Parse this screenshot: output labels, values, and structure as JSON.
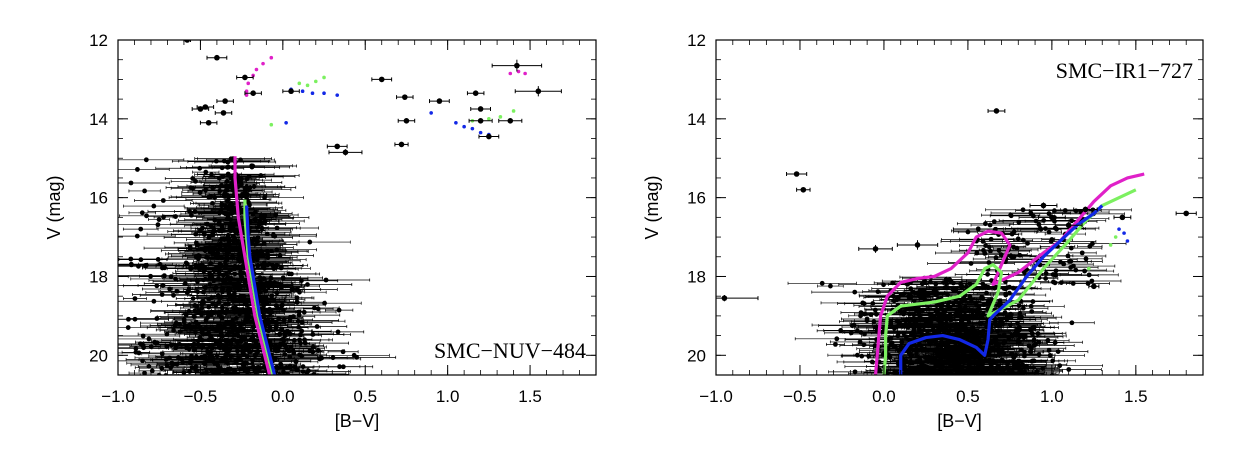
{
  "chart_data": [
    {
      "type": "scatter",
      "title": "SMC−NUV−484",
      "xlabel": "[B−V]",
      "ylabel": "V (mag)",
      "xlim": [
        -1.0,
        1.9
      ],
      "ylim": [
        20.5,
        12.0
      ],
      "y_inverted": true,
      "legend": "none",
      "title_position": "bottom-right",
      "xticks": [
        -1.0,
        -0.5,
        0.0,
        0.5,
        1.0,
        1.5
      ],
      "xtick_labels": [
        "−1.0",
        "−0.5",
        "0.0",
        "0.5",
        "1.0",
        "1.5"
      ],
      "yticks": [
        12,
        14,
        16,
        18,
        20
      ],
      "ytick_labels": [
        "12",
        "14",
        "16",
        "18",
        "20"
      ],
      "stars": [
        {
          "x": -0.58,
          "y": 12.0,
          "ex": 0.02,
          "ey": 0.02
        },
        {
          "x": -0.4,
          "y": 12.45,
          "ex": 0.06,
          "ey": 0.05
        },
        {
          "x": -0.23,
          "y": 12.95,
          "ex": 0.05,
          "ey": 0.05
        },
        {
          "x": -0.18,
          "y": 13.35,
          "ex": 0.05,
          "ey": 0.05
        },
        {
          "x": -0.35,
          "y": 13.55,
          "ex": 0.05,
          "ey": 0.05
        },
        {
          "x": -0.47,
          "y": 13.7,
          "ex": 0.05,
          "ey": 0.05
        },
        {
          "x": -0.5,
          "y": 13.75,
          "ex": 0.05,
          "ey": 0.05
        },
        {
          "x": -0.36,
          "y": 13.85,
          "ex": 0.05,
          "ey": 0.05
        },
        {
          "x": -0.45,
          "y": 14.1,
          "ex": 0.05,
          "ey": 0.05
        },
        {
          "x": 0.05,
          "y": 13.3,
          "ex": 0.05,
          "ey": 0.05
        },
        {
          "x": 0.6,
          "y": 13.0,
          "ex": 0.06,
          "ey": 0.05
        },
        {
          "x": 0.74,
          "y": 13.45,
          "ex": 0.05,
          "ey": 0.05
        },
        {
          "x": 0.95,
          "y": 13.55,
          "ex": 0.06,
          "ey": 0.05
        },
        {
          "x": 0.75,
          "y": 14.05,
          "ex": 0.05,
          "ey": 0.05
        },
        {
          "x": 0.72,
          "y": 14.65,
          "ex": 0.04,
          "ey": 0.05
        },
        {
          "x": 0.38,
          "y": 14.85,
          "ex": 0.1,
          "ey": 0.08
        },
        {
          "x": 0.33,
          "y": 14.7,
          "ex": 0.06,
          "ey": 0.06
        },
        {
          "x": 1.17,
          "y": 13.35,
          "ex": 0.05,
          "ey": 0.05
        },
        {
          "x": 1.2,
          "y": 13.75,
          "ex": 0.06,
          "ey": 0.06
        },
        {
          "x": 1.2,
          "y": 14.05,
          "ex": 0.07,
          "ey": 0.06
        },
        {
          "x": 1.38,
          "y": 14.05,
          "ex": 0.07,
          "ey": 0.06
        },
        {
          "x": 1.25,
          "y": 14.45,
          "ex": 0.06,
          "ey": 0.06
        },
        {
          "x": 1.42,
          "y": 12.65,
          "ex": 0.15,
          "ey": 0.15
        },
        {
          "x": 1.55,
          "y": 13.3,
          "ex": 0.14,
          "ey": 0.13
        }
      ],
      "isochrones": [
        {
          "name": "magenta",
          "color": "#e020c8",
          "points": [
            [
              -0.29,
              14.95
            ],
            [
              -0.29,
              15.5
            ],
            [
              -0.28,
              16.0
            ],
            [
              -0.27,
              16.5
            ],
            [
              -0.25,
              17.0
            ],
            [
              -0.23,
              17.5
            ],
            [
              -0.21,
              18.0
            ],
            [
              -0.19,
              18.5
            ],
            [
              -0.17,
              19.0
            ],
            [
              -0.14,
              19.5
            ],
            [
              -0.11,
              20.0
            ],
            [
              -0.08,
              20.5
            ]
          ]
        },
        {
          "name": "green",
          "color": "#7cf060",
          "points": [
            [
              -0.23,
              16.05
            ],
            [
              -0.23,
              16.5
            ],
            [
              -0.22,
              17.0
            ],
            [
              -0.21,
              17.5
            ],
            [
              -0.19,
              18.0
            ],
            [
              -0.17,
              18.5
            ],
            [
              -0.15,
              19.0
            ],
            [
              -0.12,
              19.5
            ],
            [
              -0.09,
              20.0
            ],
            [
              -0.06,
              20.5
            ]
          ]
        },
        {
          "name": "blue",
          "color": "#1228e6",
          "points": [
            [
              -0.22,
              16.2
            ],
            [
              -0.21,
              17.0
            ],
            [
              -0.2,
              17.5
            ],
            [
              -0.18,
              18.0
            ],
            [
              -0.16,
              18.5
            ],
            [
              -0.14,
              19.0
            ],
            [
              -0.11,
              19.5
            ],
            [
              -0.08,
              20.0
            ],
            [
              -0.05,
              20.5
            ]
          ]
        }
      ],
      "evolved_points": [
        {
          "color": "#e020c8",
          "points": [
            [
              -0.22,
              13.4
            ],
            [
              -0.22,
              13.3
            ],
            [
              -0.21,
              13.1
            ],
            [
              -0.18,
              12.9
            ],
            [
              -0.16,
              12.75
            ],
            [
              -0.12,
              12.6
            ],
            [
              -0.07,
              12.45
            ]
          ]
        },
        {
          "color": "#7cf060",
          "points": [
            [
              0.1,
              13.1
            ],
            [
              0.15,
              13.15
            ],
            [
              0.2,
              13.05
            ],
            [
              0.25,
              12.95
            ],
            [
              -0.07,
              14.15
            ],
            [
              1.15,
              14.05
            ],
            [
              1.25,
              14.0
            ],
            [
              1.32,
              13.95
            ],
            [
              1.4,
              13.8
            ]
          ]
        },
        {
          "color": "#1228e6",
          "points": [
            [
              0.05,
              13.25
            ],
            [
              0.12,
              13.3
            ],
            [
              0.18,
              13.35
            ],
            [
              0.25,
              13.35
            ],
            [
              0.33,
              13.4
            ],
            [
              0.02,
              14.1
            ],
            [
              0.9,
              13.85
            ],
            [
              1.05,
              14.1
            ],
            [
              1.1,
              14.2
            ],
            [
              1.15,
              14.25
            ],
            [
              1.2,
              14.35
            ],
            [
              1.25,
              14.4
            ]
          ]
        },
        {
          "color": "#e020c8",
          "points": [
            [
              1.38,
              12.85
            ],
            [
              1.43,
              12.8
            ],
            [
              1.47,
              12.85
            ]
          ]
        }
      ]
    },
    {
      "type": "scatter",
      "title": "SMC−IR1−727",
      "xlabel": "[B−V]",
      "ylabel": "V (mag)",
      "xlim": [
        -1.0,
        1.9
      ],
      "ylim": [
        20.5,
        12.0
      ],
      "y_inverted": true,
      "legend": "none",
      "title_position": "top-right",
      "xticks": [
        -1.0,
        -0.5,
        0.0,
        0.5,
        1.0,
        1.5
      ],
      "xtick_labels": [
        "−1.0",
        "−0.5",
        "0.0",
        "0.5",
        "1.0",
        "1.5"
      ],
      "yticks": [
        12,
        14,
        16,
        18,
        20
      ],
      "ytick_labels": [
        "12",
        "14",
        "16",
        "18",
        "20"
      ],
      "stars": [
        {
          "x": 0.67,
          "y": 13.8,
          "ex": 0.05,
          "ey": 0.05
        },
        {
          "x": -0.52,
          "y": 15.4,
          "ex": 0.06,
          "ey": 0.05
        },
        {
          "x": -0.48,
          "y": 15.8,
          "ex": 0.04,
          "ey": 0.05
        },
        {
          "x": 1.8,
          "y": 16.4,
          "ex": 0.06,
          "ey": 0.05
        },
        {
          "x": -0.95,
          "y": 18.55,
          "ex": 0.2,
          "ey": 0.08
        },
        {
          "x": 1.25,
          "y": 18.25,
          "ex": 0.03,
          "ey": 0.05
        },
        {
          "x": -0.05,
          "y": 17.3,
          "ex": 0.1,
          "ey": 0.1
        },
        {
          "x": 0.2,
          "y": 17.2,
          "ex": 0.12,
          "ey": 0.12
        },
        {
          "x": 1.42,
          "y": 16.5,
          "ex": 0.05,
          "ey": 0.05
        },
        {
          "x": 1.0,
          "y": 16.5,
          "ex": 0.08,
          "ey": 0.08
        },
        {
          "x": 1.2,
          "y": 16.3,
          "ex": 0.07,
          "ey": 0.07
        },
        {
          "x": 0.95,
          "y": 16.2,
          "ex": 0.08,
          "ey": 0.08
        },
        {
          "x": 1.1,
          "y": 16.7,
          "ex": 0.08,
          "ey": 0.08
        }
      ],
      "isochrones": [
        {
          "name": "magenta",
          "color": "#e020c8",
          "points": [
            [
              -0.05,
              20.5
            ],
            [
              -0.04,
              20.0
            ],
            [
              -0.03,
              19.5
            ],
            [
              -0.02,
              19.0
            ],
            [
              0.02,
              18.5
            ],
            [
              0.1,
              18.15
            ],
            [
              0.2,
              18.05
            ],
            [
              0.3,
              18.0
            ],
            [
              0.4,
              17.8
            ],
            [
              0.5,
              17.4
            ],
            [
              0.55,
              17.0
            ],
            [
              0.62,
              16.85
            ],
            [
              0.7,
              16.9
            ],
            [
              0.75,
              17.2
            ],
            [
              0.7,
              17.7
            ],
            [
              0.65,
              18.2
            ],
            [
              0.8,
              17.9
            ],
            [
              0.95,
              17.4
            ],
            [
              1.05,
              17.1
            ],
            [
              1.15,
              16.6
            ],
            [
              1.25,
              16.1
            ],
            [
              1.35,
              15.7
            ],
            [
              1.45,
              15.5
            ],
            [
              1.55,
              15.4
            ]
          ]
        },
        {
          "name": "green",
          "color": "#7cf060",
          "points": [
            [
              0.0,
              20.5
            ],
            [
              0.01,
              20.0
            ],
            [
              0.01,
              19.5
            ],
            [
              0.02,
              19.0
            ],
            [
              0.1,
              18.75
            ],
            [
              0.2,
              18.7
            ],
            [
              0.3,
              18.65
            ],
            [
              0.45,
              18.5
            ],
            [
              0.55,
              18.2
            ],
            [
              0.6,
              17.8
            ],
            [
              0.65,
              17.7
            ],
            [
              0.7,
              17.9
            ],
            [
              0.68,
              18.4
            ],
            [
              0.62,
              19.0
            ],
            [
              0.8,
              18.6
            ],
            [
              0.95,
              17.8
            ],
            [
              1.1,
              17.1
            ],
            [
              1.2,
              16.6
            ],
            [
              1.3,
              16.2
            ],
            [
              1.4,
              16.0
            ],
            [
              1.5,
              15.8
            ]
          ]
        },
        {
          "name": "blue",
          "color": "#1228e6",
          "points": [
            [
              0.1,
              20.5
            ],
            [
              0.1,
              20.0
            ],
            [
              0.15,
              19.7
            ],
            [
              0.25,
              19.55
            ],
            [
              0.35,
              19.5
            ],
            [
              0.45,
              19.6
            ],
            [
              0.55,
              19.8
            ],
            [
              0.6,
              20.0
            ],
            [
              0.62,
              19.6
            ],
            [
              0.63,
              19.1
            ],
            [
              0.65,
              19.0
            ],
            [
              0.75,
              18.6
            ],
            [
              0.85,
              18.0
            ],
            [
              0.95,
              17.5
            ],
            [
              1.05,
              17.1
            ],
            [
              1.15,
              16.7
            ],
            [
              1.25,
              16.4
            ],
            [
              1.3,
              16.2
            ]
          ]
        }
      ],
      "evolved_points": [
        {
          "color": "#7cf060",
          "points": [
            [
              1.35,
              17.2
            ],
            [
              1.38,
              17.0
            ],
            [
              1.22,
              17.8
            ]
          ]
        },
        {
          "color": "#1228e6",
          "points": [
            [
              1.4,
              16.8
            ],
            [
              1.43,
              16.9
            ],
            [
              1.45,
              17.1
            ]
          ]
        }
      ]
    }
  ]
}
